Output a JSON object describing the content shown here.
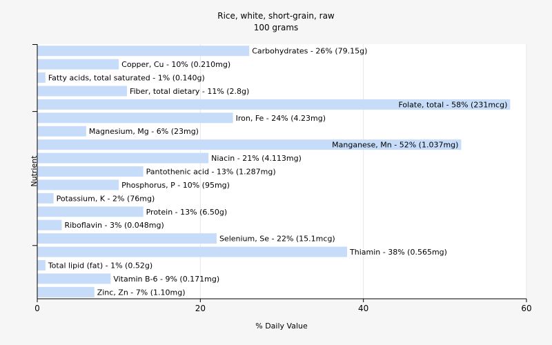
{
  "chart_data": {
    "type": "bar",
    "orientation": "horizontal",
    "title": "Rice, white, short-grain, raw",
    "subtitle": "100 grams",
    "xlabel": "% Daily Value",
    "ylabel": "Nutrient",
    "xlim": [
      0,
      60
    ],
    "xticks": [
      0,
      20,
      40,
      60
    ],
    "grid": true,
    "categories": [
      "Carbohydrates",
      "Copper, Cu",
      "Fatty acids, total saturated",
      "Fiber, total dietary",
      "Folate, total",
      "Iron, Fe",
      "Magnesium, Mg",
      "Manganese, Mn",
      "Niacin",
      "Pantothenic acid",
      "Phosphorus, P",
      "Potassium, K",
      "Protein",
      "Riboflavin",
      "Selenium, Se",
      "Thiamin",
      "Total lipid (fat)",
      "Vitamin B-6",
      "Zinc, Zn"
    ],
    "values": [
      26,
      10,
      1,
      11,
      58,
      24,
      6,
      52,
      21,
      13,
      10,
      2,
      13,
      3,
      22,
      38,
      1,
      9,
      7
    ],
    "bar_labels": [
      "Carbohydrates - 26% (79.15g)",
      "Copper, Cu - 10% (0.210mg)",
      "Fatty acids, total saturated - 1% (0.140g)",
      "Fiber, total dietary - 11% (2.8g)",
      "Folate, total - 58% (231mcg)",
      "Iron, Fe - 24% (4.23mg)",
      "Magnesium, Mg - 6% (23mg)",
      "Manganese, Mn - 52% (1.037mg)",
      "Niacin - 21% (4.113mg)",
      "Pantothenic acid - 13% (1.287mg)",
      "Phosphorus, P - 10% (95mg)",
      "Potassium, K - 2% (76mg)",
      "Protein - 13% (6.50g)",
      "Riboflavin - 3% (0.048mg)",
      "Selenium, Se - 22% (15.1mcg)",
      "Thiamin - 38% (0.565mg)",
      "Total lipid (fat) - 1% (0.52g)",
      "Vitamin B-6 - 9% (0.171mg)",
      "Zinc, Zn - 7% (1.10mg)"
    ],
    "colors": {
      "bar": "#c6dcf9",
      "background": "#f6f6f6",
      "plot": "#ffffff",
      "grid": "#e6e6e6",
      "axis": "#000000"
    }
  }
}
